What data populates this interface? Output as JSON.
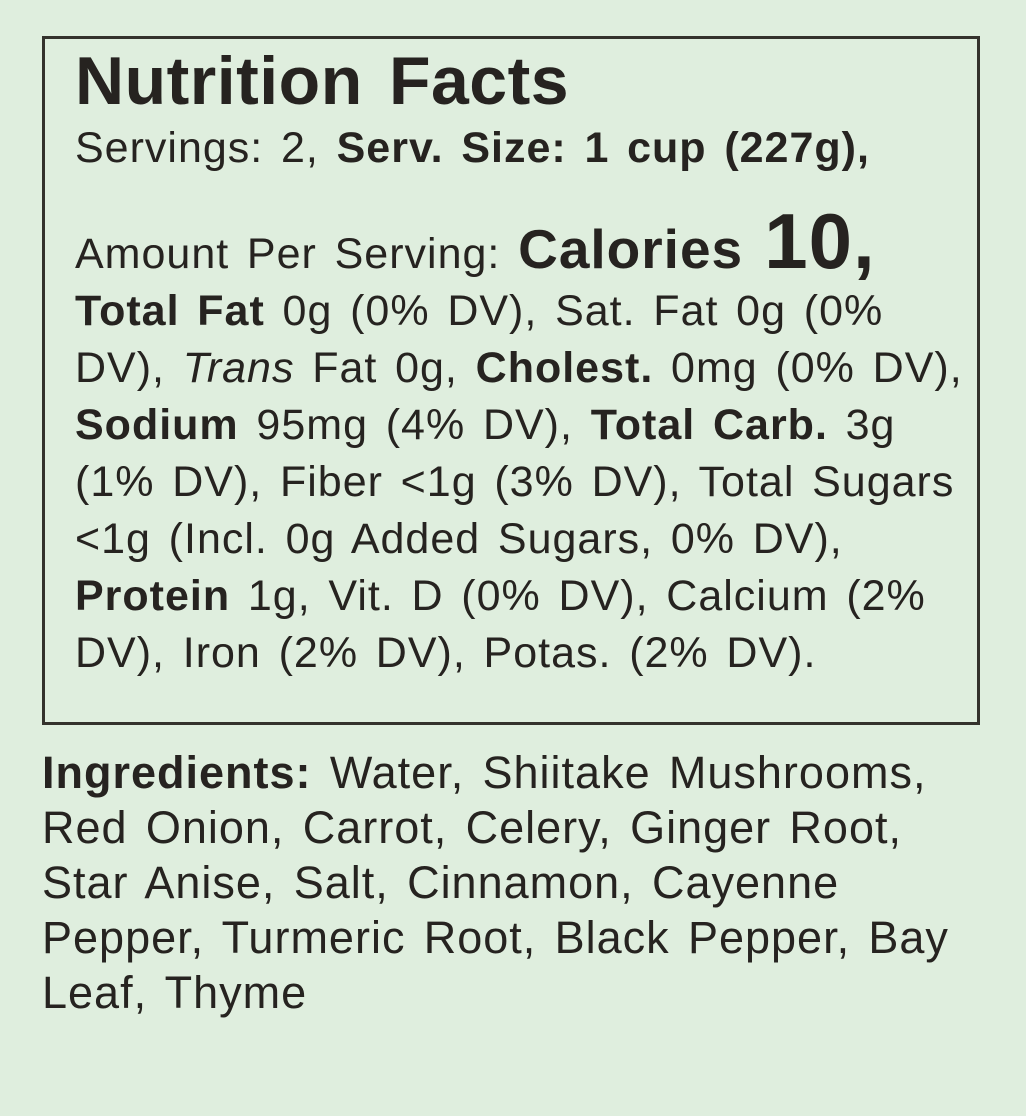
{
  "colors": {
    "background": "#dfeede",
    "text": "#262320",
    "box_border": "#34322c"
  },
  "nutrition_facts": {
    "title": "Nutrition Facts",
    "servings": {
      "regular": "Servings: 2, ",
      "bold": "Serv. Size: 1 cup (227g),"
    },
    "details_runs": [
      {
        "name": "amount-per-serving-label",
        "style": "regular",
        "text": "Amount Per Serving: "
      },
      {
        "name": "calories-label",
        "style": "calories-label",
        "text": "Calories "
      },
      {
        "name": "calories-value",
        "style": "calories-value",
        "text": "10,"
      },
      {
        "name": "total-fat-label",
        "style": "bold",
        "text": " Total Fat"
      },
      {
        "name": "total-fat-value",
        "style": "regular",
        "text": " 0g (0% DV), Sat. Fat 0g (0% DV), "
      },
      {
        "name": "trans-fat-label",
        "style": "italic",
        "text": "Trans"
      },
      {
        "name": "trans-fat-value",
        "style": "regular",
        "text": " Fat 0g, "
      },
      {
        "name": "cholesterol-label",
        "style": "bold",
        "text": "Cholest."
      },
      {
        "name": "cholesterol-value",
        "style": "regular",
        "text": " 0mg (0% DV), "
      },
      {
        "name": "sodium-label",
        "style": "bold",
        "text": "Sodium"
      },
      {
        "name": "sodium-value",
        "style": "regular",
        "text": " 95mg (4% DV), "
      },
      {
        "name": "total-carb-label",
        "style": "bold",
        "text": "Total Carb."
      },
      {
        "name": "carb-fiber-sugars-value",
        "style": "regular",
        "text": " 3g (1% DV), Fiber <1g (3% DV), Total Sugars <1g (Incl. 0g Added Sugars, 0% DV), "
      },
      {
        "name": "protein-label",
        "style": "bold",
        "text": "Protein"
      },
      {
        "name": "protein-vitamins-minerals-value",
        "style": "regular",
        "text": " 1g, Vit. D (0% DV), Calcium (2% DV), Iron (2% DV), Potas. (2% DV)."
      }
    ]
  },
  "ingredients": {
    "label": "Ingredients:",
    "items": " Water, Shiitake Mushrooms, Red Onion, Carrot, Celery, Ginger Root, Star Anise, Salt, Cinnamon, Cayenne Pepper, Turmeric Root, Black Pepper, Bay Leaf, Thyme"
  }
}
